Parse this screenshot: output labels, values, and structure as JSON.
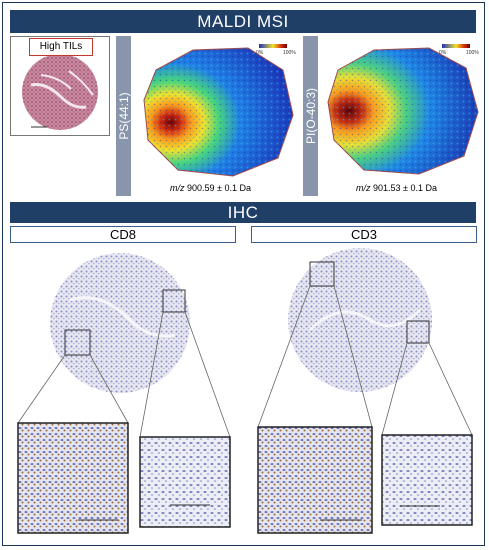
{
  "maldi": {
    "title": "MALDI MSI",
    "sample_label": "High TILs",
    "panels": [
      {
        "side_label": "PS(44:1)",
        "mz_prefix": "m/z",
        "mz_value": "900.59 ± 0.1 Da"
      },
      {
        "side_label": "PI(O-40:3)",
        "mz_prefix": "m/z",
        "mz_value": "901.53 ± 0.1 Da"
      }
    ],
    "scale_min": "0%",
    "scale_max": "100%"
  },
  "ihc": {
    "title": "IHC",
    "markers": [
      "CD8",
      "CD3"
    ]
  },
  "colors": {
    "banner": "#1f3f66",
    "sidebar": "#8895ab",
    "sample_box": "#c0392b",
    "tissue_stain": "#b3b6d6"
  }
}
